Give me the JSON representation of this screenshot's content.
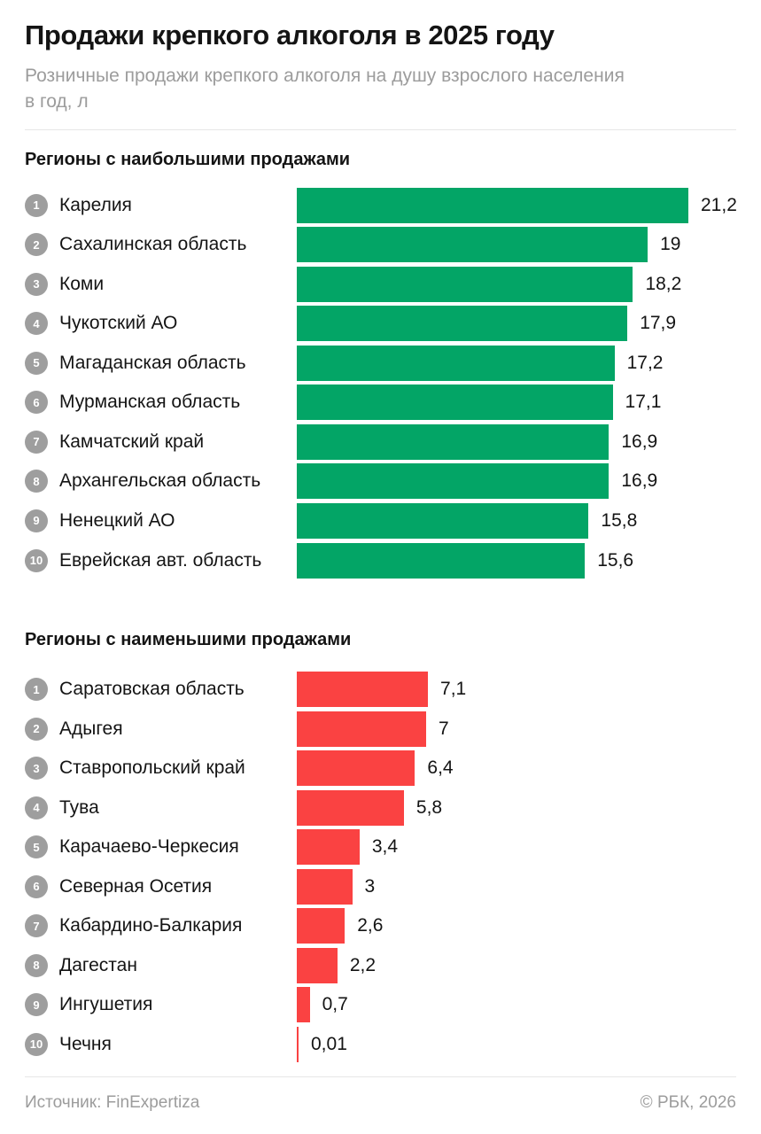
{
  "header": {
    "title": "Продажи крепкого алкоголя в 2025 году",
    "subtitle_lines": [
      "Розничные продажи крепкого алкоголя на душу взрослого населения",
      "в год, л"
    ]
  },
  "colors": {
    "bar_top_green": "#03a566",
    "bar_bottom_red": "#fa4242",
    "rank_badge_gray": "#9e9e9e",
    "subtitle_gray": "#9c9c9c"
  },
  "chart_data": [
    {
      "type": "bar",
      "orientation": "horizontal",
      "title": "Регионы с наибольшими продажами",
      "color": "#03a566",
      "unit": "л",
      "xlim": [
        0,
        21.2
      ],
      "ranks": [
        "1",
        "2",
        "3",
        "4",
        "5",
        "6",
        "7",
        "8",
        "9",
        "10"
      ],
      "categories": [
        "Карелия",
        "Сахалинская область",
        "Коми",
        "Чукотский АО",
        "Магаданская область",
        "Мурманская область",
        "Камчатский край",
        "Архангельская область",
        "Ненецкий АО",
        "Еврейская авт. область"
      ],
      "values": [
        21.2,
        19,
        18.2,
        17.9,
        17.2,
        17.1,
        16.9,
        16.9,
        15.8,
        15.6
      ],
      "value_labels": [
        "21,2",
        "19",
        "18,2",
        "17,9",
        "17,2",
        "17,1",
        "16,9",
        "16,9",
        "15,8",
        "15,6"
      ]
    },
    {
      "type": "bar",
      "orientation": "horizontal",
      "title": "Регионы с наименьшими продажами",
      "color": "#fa4242",
      "unit": "л",
      "xlim": [
        0,
        21.2
      ],
      "ranks": [
        "1",
        "2",
        "3",
        "4",
        "5",
        "6",
        "7",
        "8",
        "9",
        "10"
      ],
      "categories": [
        "Саратовская область",
        "Адыгея",
        "Ставропольский край",
        "Тува",
        "Карачаево-Черкесия",
        "Северная Осетия",
        "Кабардино-Балкария",
        "Дагестан",
        "Ингушетия",
        "Чечня"
      ],
      "values": [
        7.1,
        7,
        6.4,
        5.8,
        3.4,
        3,
        2.6,
        2.2,
        0.7,
        0.01
      ],
      "value_labels": [
        "7,1",
        "7",
        "6,4",
        "5,8",
        "3,4",
        "3",
        "2,6",
        "2,2",
        "0,7",
        "0,01"
      ]
    }
  ],
  "footer": {
    "source": "Источник: FinExpertiza",
    "copyright": "© РБК, 2026"
  }
}
